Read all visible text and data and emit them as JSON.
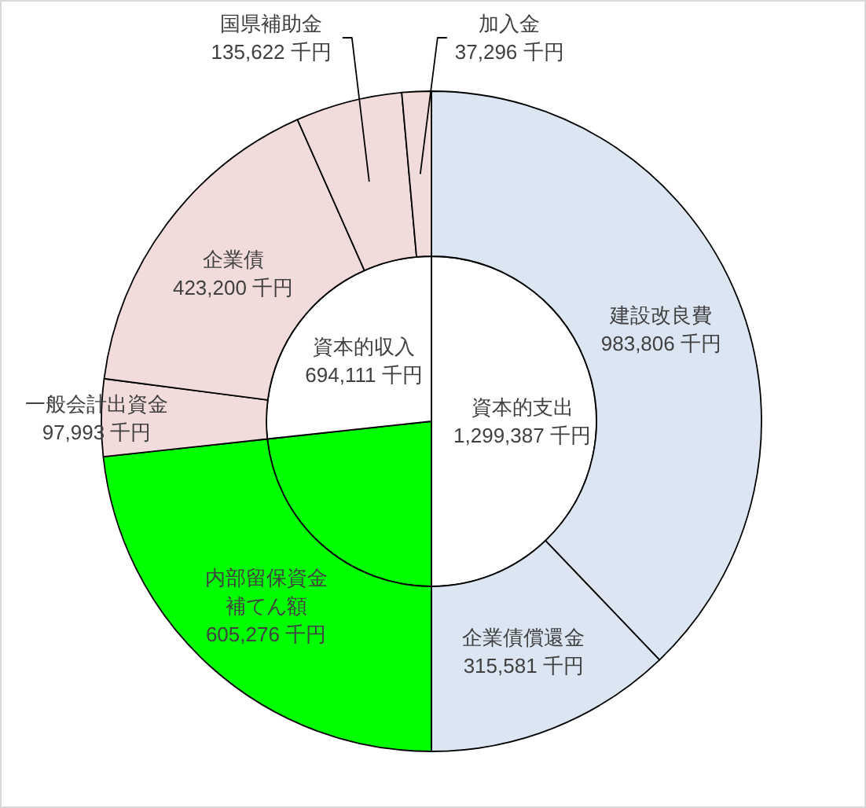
{
  "chart_data": [
    {
      "type": "pie",
      "categories": [
        "資本的支出",
        null,
        "資本的収入"
      ],
      "values": [
        1299387,
        605276,
        694111
      ],
      "colors": [
        "#ffffff",
        "#00ff00",
        "#ffffff"
      ],
      "value_labels": [
        "1,299,387 千円",
        null,
        "694,111 千円"
      ]
    },
    {
      "type": "donut",
      "categories": [
        "建設改良費",
        "企業債償還金",
        "内部留保資金補てん額",
        "一般会計出資金",
        "企業債",
        "国県補助金",
        "加入金"
      ],
      "values": [
        983806,
        315581,
        605276,
        97993,
        423200,
        135622,
        37296
      ],
      "colors": [
        "#dce6f2",
        "#dce6f2",
        "#00ff00",
        "#f2dcdb",
        "#f2dcdb",
        "#f2dcdb",
        "#f2dcdb"
      ],
      "value_labels": [
        "983,806 千円",
        "315,581 千円",
        "605,276 千円",
        "97,993 千円",
        "423,200 千円",
        "135,622 千円",
        "37,296 千円"
      ]
    }
  ]
}
